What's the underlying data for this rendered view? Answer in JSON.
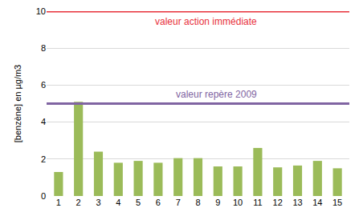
{
  "chart_data": {
    "type": "bar",
    "y_label": "[benzène] en µg/m3",
    "categories": [
      1,
      2,
      3,
      4,
      5,
      6,
      7,
      8,
      9,
      10,
      11,
      12,
      13,
      14,
      15
    ],
    "values": [
      1.3,
      5.1,
      2.4,
      1.8,
      1.9,
      1.8,
      2.05,
      2.05,
      1.6,
      1.6,
      2.6,
      1.55,
      1.65,
      1.9,
      1.5
    ],
    "color": "#9bbb59",
    "ylim": [
      0,
      10
    ],
    "yticks": [
      0,
      2,
      4,
      6,
      8,
      10
    ],
    "grid": true,
    "annotations": [
      {
        "text": "valeur action immédiate",
        "y": 10,
        "color": "#e8303a"
      },
      {
        "text": "valeur repère 2009",
        "y": 5,
        "color": "#8064a2"
      }
    ]
  }
}
